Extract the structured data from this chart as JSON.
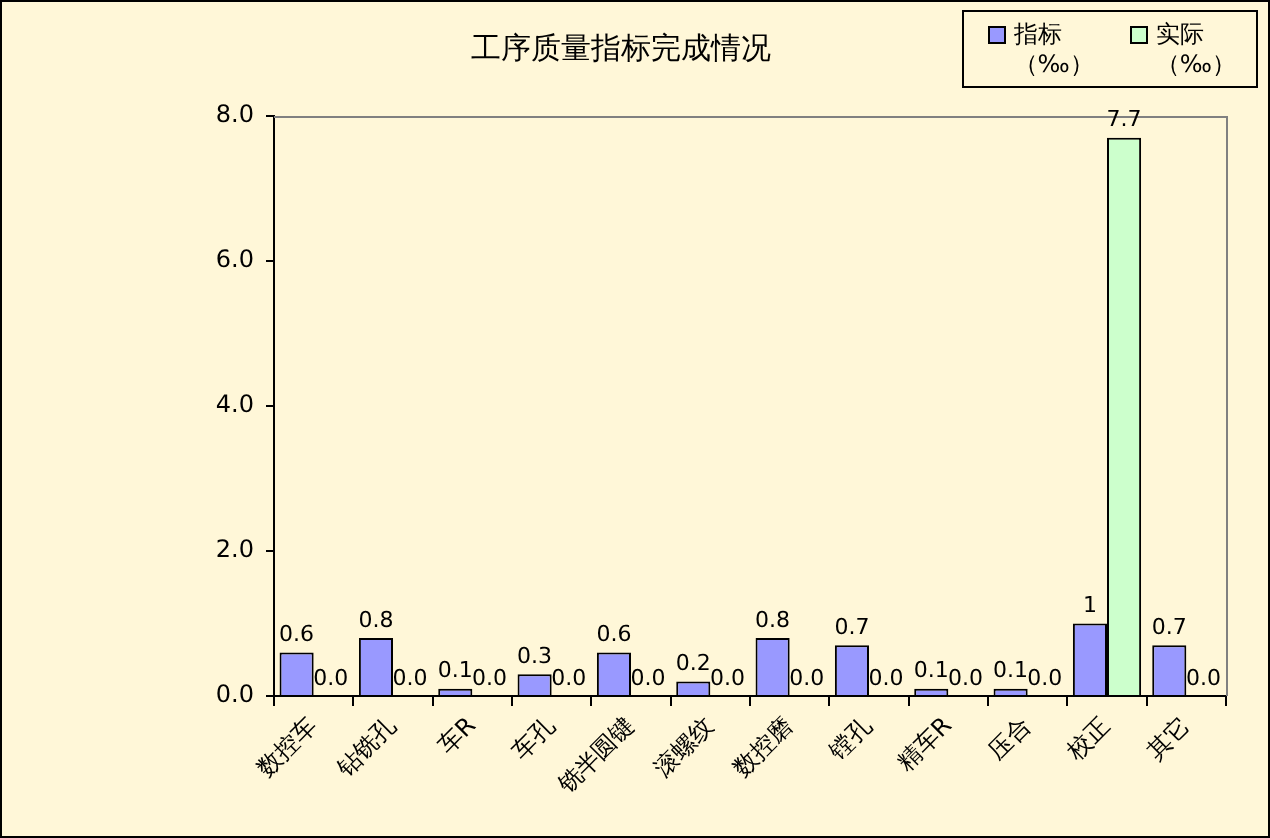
{
  "chart_data": {
    "type": "bar",
    "title": "工序质量指标完成情况",
    "categories": [
      "数控车",
      "钻铣孔",
      "车R",
      "车孔",
      "铣半圆键",
      "滚螺纹",
      "数控磨",
      "镗孔",
      "精车R",
      "压合",
      "校正",
      "其它"
    ],
    "series": [
      {
        "name": "指标（‰）",
        "color": "#9999ff",
        "values": [
          0.6,
          0.8,
          0.1,
          0.3,
          0.6,
          0.2,
          0.8,
          0.7,
          0.1,
          0.1,
          1,
          0.7
        ],
        "value_labels": [
          "0.6",
          "0.8",
          "0.1",
          "0.3",
          "0.6",
          "0.2",
          "0.8",
          "0.7",
          "0.1",
          "0.1",
          "1",
          "0.7"
        ]
      },
      {
        "name": "实际（‰）",
        "color": "#ccffcc",
        "values": [
          0,
          0,
          0,
          0,
          0,
          0,
          0,
          0,
          0,
          0,
          7.7,
          0
        ],
        "value_labels": [
          "0.0",
          "0.0",
          "0.0",
          "0.0",
          "0.0",
          "0.0",
          "0.0",
          "0.0",
          "0.0",
          "0.0",
          "7.7",
          "0.0"
        ]
      }
    ],
    "ylim": [
      0,
      8
    ],
    "yticks": [
      {
        "value": 0,
        "label": "0.0"
      },
      {
        "value": 2,
        "label": "2.0"
      },
      {
        "value": 4,
        "label": "4.0"
      },
      {
        "value": 6,
        "label": "6.0"
      },
      {
        "value": 8,
        "label": "8.0"
      }
    ],
    "legend": "top right"
  }
}
